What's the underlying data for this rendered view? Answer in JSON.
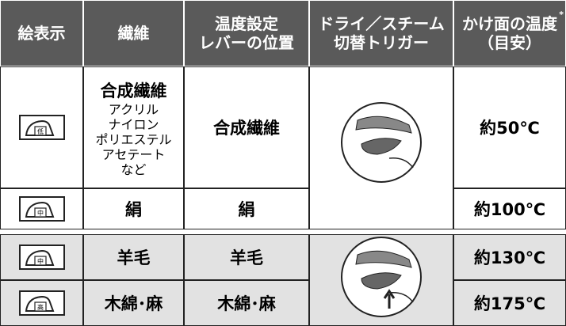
{
  "header": {
    "columns": [
      [
        "絵表示"
      ],
      [
        "繊維"
      ],
      [
        "温度設定",
        "レバーの位置"
      ],
      [
        "ドライ／スチーム",
        "切替トリガー"
      ],
      [
        "かけ面の温度",
        "（目安）"
      ]
    ],
    "note": "*"
  },
  "rows": [
    {
      "icon": "低",
      "fiber": "合成繊維",
      "examples": [
        "アクリル",
        "ナイロン",
        "ポリエステル",
        "アセテート",
        "など"
      ],
      "lever": "合成繊維",
      "temperature": "約50℃"
    },
    {
      "icon": "中",
      "fiber": "絹",
      "lever": "絹",
      "temperature": "約100℃"
    },
    {
      "icon": "中",
      "fiber": "羊毛",
      "lever": "羊毛",
      "temperature": "約130℃"
    },
    {
      "icon": "高",
      "fiber": "木綿･麻",
      "lever": "木綿･麻",
      "temperature": "約175℃"
    }
  ]
}
